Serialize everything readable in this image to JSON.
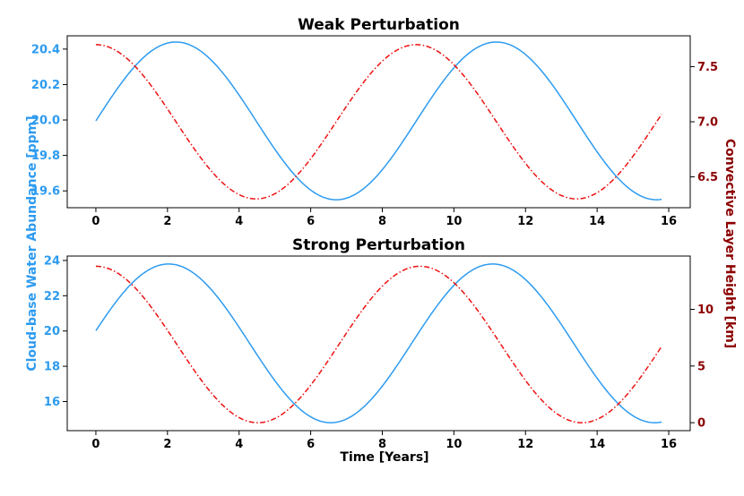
{
  "colors": {
    "left_axis": "#2d9bf0",
    "right_axis": "#8b0000",
    "series_left": "#2d9bf0",
    "series_right": "#ee1111"
  },
  "shared": {
    "ylabel_left": "Cloud-base Water Abundance [ppm]",
    "ylabel_right": "Convective Layer Height [km]",
    "xlabel": "Time [Years]"
  },
  "chart_data": [
    {
      "type": "line",
      "title": "Weak Perturbation",
      "xlim": [
        -0.8,
        16.6
      ],
      "xticks": [
        0,
        2,
        4,
        6,
        8,
        10,
        12,
        14,
        16
      ],
      "left": {
        "ylim": [
          19.505,
          20.475
        ],
        "yticks": [
          19.6,
          19.8,
          20.0,
          20.2,
          20.4
        ],
        "series": {
          "x_start": 0,
          "x_end": 15.8,
          "mean": 19.995,
          "amplitude": 0.445,
          "period": 8.95,
          "phase": 0,
          "style": "solid"
        }
      },
      "right": {
        "ylim": [
          6.22,
          7.78
        ],
        "yticks": [
          6.5,
          7.0,
          7.5
        ],
        "series": {
          "x_start": 0,
          "x_end": 15.8,
          "mean": 7.0,
          "amplitude": 0.7,
          "period": 8.95,
          "phase": 0,
          "style": "dashdot"
        }
      }
    },
    {
      "type": "line",
      "title": "Strong Perturbation",
      "xlim": [
        -0.8,
        16.6
      ],
      "xticks": [
        0,
        2,
        4,
        6,
        8,
        10,
        12,
        14,
        16
      ],
      "left": {
        "ylim": [
          14.35,
          24.25
        ],
        "yticks": [
          16,
          18,
          20,
          22,
          24
        ],
        "series": {
          "x_start": 0,
          "x_end": 15.8,
          "mean": 19.3,
          "amplitude": 4.5,
          "period": 9.05,
          "phase": 0.16,
          "style": "solid"
        }
      },
      "right": {
        "ylim": [
          -0.7,
          14.7
        ],
        "yticks": [
          0,
          5,
          10
        ],
        "series": {
          "x_start": 0,
          "x_end": 15.8,
          "mean": 6.9,
          "amplitude": 6.9,
          "period": 9.05,
          "phase": 0,
          "style": "dashdot"
        }
      }
    }
  ]
}
